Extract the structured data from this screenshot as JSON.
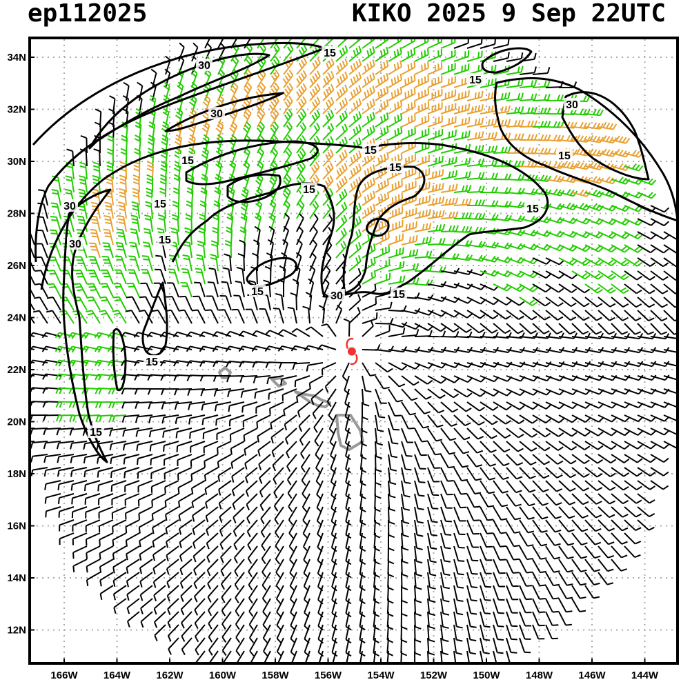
{
  "header": {
    "storm_id": "ep112025",
    "storm_title": "KIKO 2025   9 Sep 22UTC"
  },
  "axes": {
    "lat_labels": [
      "34N",
      "32N",
      "30N",
      "28N",
      "26N",
      "24N",
      "22N",
      "20N",
      "18N",
      "16N",
      "14N",
      "12N"
    ],
    "lon_labels": [
      "166W",
      "164W",
      "162W",
      "160W",
      "158W",
      "156W",
      "154W",
      "152W",
      "150W",
      "148W",
      "146W",
      "144W"
    ]
  },
  "contour_labels": [
    "15",
    "30",
    "15",
    "30",
    "30",
    "15",
    "15",
    "15",
    "15",
    "15",
    "30",
    "15",
    "15",
    "30",
    "15",
    "15",
    "30",
    "15",
    "15",
    "15"
  ],
  "storm_center": {
    "lon": -155.1,
    "lat": 22.7
  },
  "colors": {
    "calm": "#000000",
    "moderate": "#22cc00",
    "strong": "#e8a030",
    "storm_symbol": "#ee3333",
    "islands": "#999999",
    "grid": "#aaaaaa"
  },
  "chart_data": {
    "type": "map",
    "fields": "wind barbs with isotach contours (kt)",
    "contour_levels": [
      15,
      30
    ],
    "lon_range": [
      -167.2,
      -143.2
    ],
    "lat_range": [
      11,
      35
    ]
  }
}
